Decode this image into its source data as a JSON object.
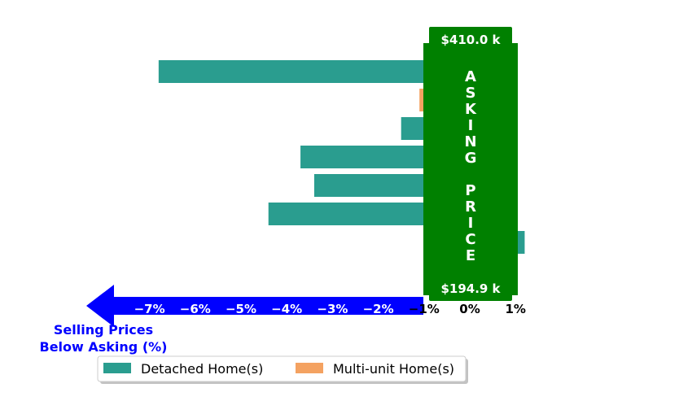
{
  "chart_data": {
    "type": "bar",
    "orientation": "horizontal",
    "x_unit": "%",
    "xlim": [
      -7.4,
      1.3
    ],
    "x_ticks": [
      -7,
      -6,
      -5,
      -4,
      -3,
      -2,
      -1,
      0,
      1
    ],
    "x_tick_labels": [
      "−7%",
      "−6%",
      "−5%",
      "−4%",
      "−3%",
      "−2%",
      "−1%",
      "0%",
      "1%"
    ],
    "direction_label": "Selling Prices\nBelow Asking (%)",
    "series": [
      {
        "name": "Detached Home(s)",
        "color": "#2a9d8f",
        "bars": [
          {
            "row": 0,
            "value": -6.8
          },
          {
            "row": 2,
            "value": -1.5
          },
          {
            "row": 3,
            "value": -3.7
          },
          {
            "row": 4,
            "value": -3.4
          },
          {
            "row": 5,
            "value": -4.4
          },
          {
            "row": 6,
            "value": 1.2
          }
        ]
      },
      {
        "name": "Multi-unit Home(s)",
        "color": "#f4a261",
        "bars": [
          {
            "row": 1,
            "value": -1.1
          }
        ]
      }
    ],
    "asking_box": {
      "label": "ASKING\nPRICE",
      "top_price": "$410.0 k",
      "bottom_price": "$194.9 k",
      "color": "#008000"
    },
    "arrow_color": "#0000ff",
    "legend": {
      "position": "bottom",
      "entries": [
        "Detached Home(s)",
        "Multi-unit Home(s)"
      ]
    }
  }
}
